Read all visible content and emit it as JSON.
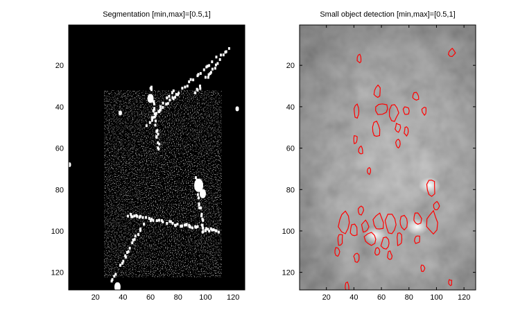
{
  "chart_data": [
    {
      "type": "heatmap",
      "title": "Segmentation [min,max]=[0.5,1]",
      "colormap": "gray",
      "color_range": [
        0.5,
        1
      ],
      "xlim": [
        0.5,
        128.5
      ],
      "ylim": [
        0.5,
        128.5
      ],
      "y_reversed": true,
      "xticks": [
        20,
        40,
        60,
        80,
        100,
        120
      ],
      "yticks": [
        20,
        40,
        60,
        80,
        100,
        120
      ],
      "xtick_labels": [
        "20",
        "40",
        "60",
        "80",
        "100",
        "120"
      ],
      "ytick_labels": [
        "20",
        "40",
        "60",
        "80",
        "100",
        "120"
      ],
      "background_color": "#000000",
      "foreground_color": "#ffffff",
      "features": [
        {
          "kind": "line",
          "x0": 60,
          "y0": 45,
          "x1": 110,
          "y1": 14
        },
        {
          "kind": "line",
          "x0": 92,
          "y0": 33,
          "x1": 118,
          "y1": 10
        },
        {
          "kind": "line",
          "x0": 55,
          "y0": 50,
          "x1": 76,
          "y1": 32
        },
        {
          "kind": "line",
          "x0": 60,
          "y0": 30,
          "x1": 66,
          "y1": 62
        },
        {
          "kind": "line",
          "x0": 43,
          "y0": 92,
          "x1": 110,
          "y1": 100
        },
        {
          "kind": "line",
          "x0": 30,
          "y0": 125,
          "x1": 55,
          "y1": 95
        },
        {
          "kind": "line",
          "x0": 92,
          "y0": 72,
          "x1": 98,
          "y1": 100
        },
        {
          "kind": "blob",
          "x": 95,
          "y": 78,
          "r": 3
        },
        {
          "kind": "blob",
          "x": 98,
          "y": 82,
          "r": 2
        },
        {
          "kind": "blob",
          "x": 36,
          "y": 127,
          "r": 2
        },
        {
          "kind": "blob",
          "x": 60,
          "y": 36,
          "r": 2
        },
        {
          "kind": "blob",
          "x": 38,
          "y": 43,
          "r": 1
        },
        {
          "kind": "blob",
          "x": 1,
          "y": 68,
          "r": 1
        },
        {
          "kind": "blob",
          "x": 123,
          "y": 41,
          "r": 1
        }
      ]
    },
    {
      "type": "heatmap",
      "title": "Small object detection [min,max]=[0.5,1]",
      "colormap": "gray",
      "color_range": [
        0.5,
        1
      ],
      "xlim": [
        0.5,
        128.5
      ],
      "ylim": [
        0.5,
        128.5
      ],
      "y_reversed": true,
      "xticks": [
        20,
        40,
        60,
        80,
        100,
        120
      ],
      "yticks": [
        20,
        40,
        60,
        80,
        100,
        120
      ],
      "xtick_labels": [
        "20",
        "40",
        "60",
        "80",
        "100",
        "120"
      ],
      "ytick_labels": [
        "20",
        "40",
        "60",
        "80",
        "100",
        "120"
      ],
      "overlay": "contours",
      "contour_color": "#ff0000",
      "bright_spots": [
        {
          "x": 95,
          "y": 78
        },
        {
          "x": 86,
          "y": 98
        },
        {
          "x": 55,
          "y": 102
        }
      ],
      "contours": [
        {
          "x": 44,
          "y": 17,
          "rx": 1.5,
          "ry": 2
        },
        {
          "x": 111,
          "y": 14,
          "rx": 2.5,
          "ry": 2
        },
        {
          "x": 57,
          "y": 33,
          "rx": 2.5,
          "ry": 3
        },
        {
          "x": 85,
          "y": 35,
          "rx": 2.5,
          "ry": 2
        },
        {
          "x": 42,
          "y": 42,
          "rx": 2,
          "ry": 3
        },
        {
          "x": 60,
          "y": 41,
          "rx": 5,
          "ry": 3
        },
        {
          "x": 69,
          "y": 43,
          "rx": 3,
          "ry": 4
        },
        {
          "x": 56,
          "y": 51,
          "rx": 3,
          "ry": 4
        },
        {
          "x": 78,
          "y": 42,
          "rx": 2,
          "ry": 2
        },
        {
          "x": 72,
          "y": 50,
          "rx": 2,
          "ry": 2
        },
        {
          "x": 78,
          "y": 52,
          "rx": 1.5,
          "ry": 2
        },
        {
          "x": 91,
          "y": 42,
          "rx": 1.5,
          "ry": 2
        },
        {
          "x": 41,
          "y": 56,
          "rx": 1.5,
          "ry": 2
        },
        {
          "x": 45,
          "y": 61,
          "rx": 1.5,
          "ry": 2
        },
        {
          "x": 72,
          "y": 58,
          "rx": 1.5,
          "ry": 2
        },
        {
          "x": 51,
          "y": 71,
          "rx": 1.5,
          "ry": 1.5
        },
        {
          "x": 96,
          "y": 79,
          "rx": 3,
          "ry": 4
        },
        {
          "x": 100,
          "y": 88,
          "rx": 2,
          "ry": 2
        },
        {
          "x": 45,
          "y": 90,
          "rx": 2,
          "ry": 2
        },
        {
          "x": 33,
          "y": 96,
          "rx": 4,
          "ry": 5
        },
        {
          "x": 40,
          "y": 100,
          "rx": 3,
          "ry": 3
        },
        {
          "x": 48,
          "y": 98,
          "rx": 2.5,
          "ry": 3
        },
        {
          "x": 58,
          "y": 96,
          "rx": 4,
          "ry": 4
        },
        {
          "x": 67,
          "y": 97,
          "rx": 4,
          "ry": 5
        },
        {
          "x": 76,
          "y": 96,
          "rx": 3,
          "ry": 3
        },
        {
          "x": 86,
          "y": 94,
          "rx": 3,
          "ry": 3
        },
        {
          "x": 97,
          "y": 96,
          "rx": 4,
          "ry": 5
        },
        {
          "x": 30,
          "y": 104,
          "rx": 2,
          "ry": 3
        },
        {
          "x": 52,
          "y": 104,
          "rx": 4,
          "ry": 3
        },
        {
          "x": 63,
          "y": 106,
          "rx": 3,
          "ry": 3
        },
        {
          "x": 73,
          "y": 104,
          "rx": 2,
          "ry": 3
        },
        {
          "x": 86,
          "y": 104,
          "rx": 2,
          "ry": 2
        },
        {
          "x": 28,
          "y": 110,
          "rx": 2,
          "ry": 2
        },
        {
          "x": 57,
          "y": 110,
          "rx": 2,
          "ry": 2
        },
        {
          "x": 66,
          "y": 112,
          "rx": 1.5,
          "ry": 2
        },
        {
          "x": 42,
          "y": 113,
          "rx": 2,
          "ry": 2
        },
        {
          "x": 90,
          "y": 118,
          "rx": 1.5,
          "ry": 1.5
        },
        {
          "x": 110,
          "y": 125,
          "rx": 1.2,
          "ry": 1.5
        },
        {
          "x": 35,
          "y": 127,
          "rx": 1.5,
          "ry": 2
        }
      ]
    }
  ]
}
